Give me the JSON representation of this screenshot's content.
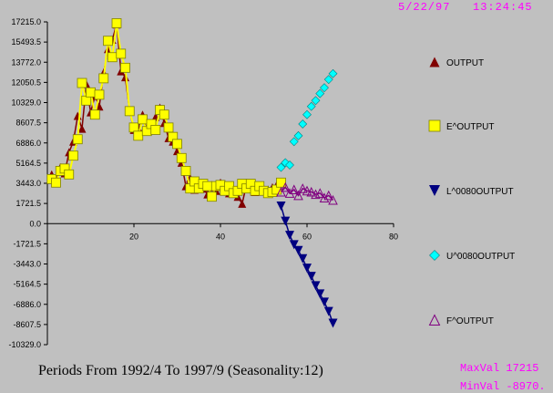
{
  "header": {
    "date": "5/22/97",
    "time": "13:24:45"
  },
  "footer": {
    "periods": "Periods From 1992/4 To 1997/9 (Seasonality:12)"
  },
  "stats": {
    "max": "MaxVal 17215",
    "min": "MinVal -8970."
  },
  "chart_data": {
    "type": "line",
    "title": "",
    "xlabel": "",
    "ylabel": "",
    "xlim": [
      0,
      80
    ],
    "ylim": [
      -10329.0,
      17215.0
    ],
    "x_ticks": [
      "20",
      "40",
      "60",
      "80"
    ],
    "x_tick_values": [
      20,
      40,
      60,
      80
    ],
    "y_ticks": [
      "17215.0",
      "15493.5",
      "13772.0",
      "12050.5",
      "10329.0",
      "8607.5",
      "6886.0",
      "5164.5",
      "3443.0",
      "1721.5",
      "0.0",
      "-1721.5",
      "-3443.0",
      "-5164.5",
      "-6886.0",
      "-8607.5",
      "-10329.0"
    ],
    "y_tick_values": [
      17215.0,
      15493.5,
      13772.0,
      12050.5,
      10329.0,
      8607.5,
      6886.0,
      5164.5,
      3443.0,
      1721.5,
      0.0,
      -1721.5,
      -3443.0,
      -5164.5,
      -6886.0,
      -8607.5,
      -10329.0
    ],
    "grid": false,
    "legend_position": "right",
    "series": [
      {
        "name": "OUTPUT",
        "marker": "triangle-up",
        "color": "#800000",
        "line": true,
        "x": [
          1,
          2,
          3,
          4,
          5,
          6,
          7,
          8,
          9,
          10,
          11,
          12,
          13,
          14,
          15,
          16,
          17,
          18,
          19,
          20,
          21,
          22,
          23,
          24,
          25,
          26,
          27,
          28,
          29,
          30,
          31,
          32,
          33,
          34,
          35,
          36,
          37,
          38,
          39,
          40,
          41,
          42,
          43,
          44,
          45,
          46,
          47,
          48,
          49,
          50,
          51,
          52,
          53,
          54
        ],
        "y": [
          4200,
          3600,
          4800,
          4300,
          6100,
          7000,
          9200,
          8100,
          11900,
          9500,
          10900,
          10000,
          12900,
          14900,
          15700,
          17000,
          13000,
          12500,
          9600,
          8000,
          8200,
          9300,
          7900,
          8100,
          9100,
          9900,
          8600,
          7300,
          7000,
          6200,
          5200,
          3200,
          3900,
          2900,
          3200,
          3000,
          2500,
          3100,
          2800,
          3500,
          2900,
          2600,
          2700,
          2300,
          1700,
          3300,
          3100,
          2700,
          2800,
          3000,
          2900,
          3100,
          3300,
          3500
        ]
      },
      {
        "name": "E^OUTPUT",
        "marker": "square",
        "color": "#ffff00",
        "line": true,
        "x": [
          1,
          2,
          3,
          4,
          5,
          6,
          7,
          8,
          9,
          10,
          11,
          12,
          13,
          14,
          15,
          16,
          17,
          18,
          19,
          20,
          21,
          22,
          23,
          24,
          25,
          26,
          27,
          28,
          29,
          30,
          31,
          32,
          33,
          34,
          35,
          36,
          37,
          38,
          39,
          40,
          41,
          42,
          43,
          44,
          45,
          46,
          47,
          48,
          49,
          50,
          51,
          52,
          53,
          54
        ],
        "y": [
          3800,
          3500,
          4500,
          4700,
          4200,
          5800,
          7200,
          12000,
          10500,
          11200,
          9300,
          11000,
          12400,
          15600,
          14200,
          17100,
          14500,
          13300,
          9600,
          8200,
          7500,
          8900,
          7900,
          8500,
          8000,
          9700,
          9300,
          8200,
          7400,
          6800,
          5600,
          4500,
          3000,
          3600,
          3000,
          3400,
          3200,
          2300,
          3200,
          3300,
          2800,
          3200,
          2600,
          2800,
          3400,
          3000,
          3400,
          2800,
          3200,
          2800,
          2600,
          2700,
          2900,
          3500
        ]
      },
      {
        "name": "L^0080OUTPUT",
        "marker": "triangle-down",
        "color": "#000080",
        "line": true,
        "x": [
          54,
          55,
          56,
          57,
          58,
          59,
          60,
          61,
          62,
          63,
          64,
          65,
          66
        ],
        "y": [
          1500,
          200,
          -1000,
          -1800,
          -2300,
          -3000,
          -3800,
          -4500,
          -5300,
          -6000,
          -6700,
          -7500,
          -8500
        ]
      },
      {
        "name": "U^0080OUTPUT",
        "marker": "diamond",
        "color": "#00ffff",
        "line": false,
        "x": [
          54,
          55,
          56,
          57,
          58,
          59,
          60,
          61,
          62,
          63,
          64,
          65,
          66
        ],
        "y": [
          4800,
          5200,
          5000,
          7000,
          7500,
          8500,
          9300,
          10000,
          10500,
          11100,
          11600,
          12300,
          12800
        ]
      },
      {
        "name": "F^OUTPUT",
        "marker": "triangle-up-open",
        "color": "#800080",
        "line": true,
        "x": [
          54,
          55,
          56,
          57,
          58,
          59,
          60,
          61,
          62,
          63,
          64,
          65,
          66
        ],
        "y": [
          2700,
          3100,
          2600,
          2900,
          2400,
          3000,
          2800,
          2700,
          2500,
          2600,
          2200,
          2400,
          2000
        ]
      }
    ]
  }
}
